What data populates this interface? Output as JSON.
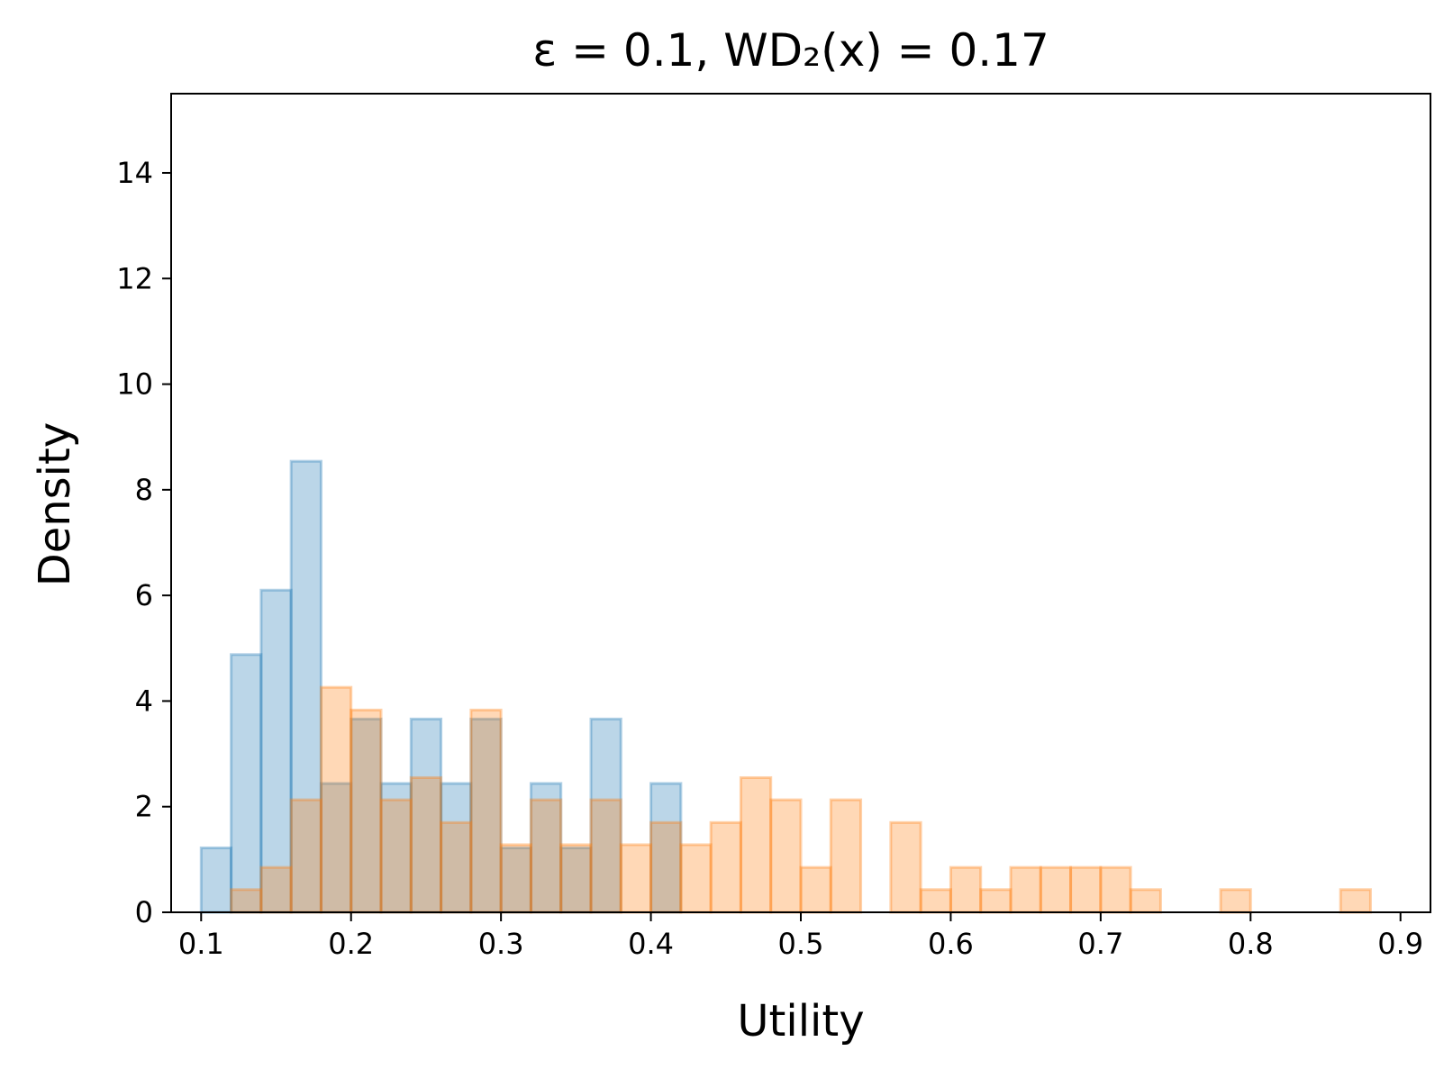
{
  "chart_data": {
    "type": "bar",
    "title": "ε = 0.1, WD₂(x) = 0.17",
    "xlabel": "Utility",
    "ylabel": "Density",
    "xlim": [
      0.08,
      0.92
    ],
    "ylim": [
      0,
      15.5
    ],
    "xticks": [
      "0.1",
      "0.2",
      "0.3",
      "0.4",
      "0.5",
      "0.6",
      "0.7",
      "0.8",
      "0.9"
    ],
    "yticks": [
      "0",
      "2",
      "4",
      "6",
      "8",
      "10",
      "12",
      "14"
    ],
    "grid": false,
    "bin_width": 0.02,
    "series": [
      {
        "color": "#1f77b4",
        "fill_opacity": 0.3,
        "bin_starts": [
          0.1,
          0.12,
          0.14,
          0.16,
          0.18,
          0.2,
          0.22,
          0.24,
          0.26,
          0.28,
          0.3,
          0.32,
          0.34,
          0.36,
          0.38,
          0.4
        ],
        "values": [
          1.22,
          4.88,
          6.1,
          8.54,
          2.44,
          3.66,
          2.44,
          3.66,
          2.44,
          3.66,
          1.22,
          2.44,
          1.22,
          3.66,
          0,
          2.44
        ]
      },
      {
        "color": "#ff7f0e",
        "fill_opacity": 0.3,
        "bin_starts": [
          0.12,
          0.14,
          0.16,
          0.18,
          0.2,
          0.22,
          0.24,
          0.26,
          0.28,
          0.3,
          0.32,
          0.34,
          0.36,
          0.38,
          0.4,
          0.42,
          0.44,
          0.46,
          0.48,
          0.5,
          0.52,
          0.56,
          0.58,
          0.6,
          0.62,
          0.64,
          0.66,
          0.68,
          0.7,
          0.72,
          0.78,
          0.86
        ],
        "values": [
          0.43,
          0.85,
          2.13,
          4.26,
          3.83,
          2.13,
          2.55,
          1.7,
          3.83,
          1.28,
          2.13,
          1.28,
          2.13,
          1.28,
          1.7,
          1.28,
          1.7,
          2.55,
          2.13,
          0.85,
          2.13,
          1.7,
          0.43,
          0.85,
          0.43,
          0.85,
          0.85,
          0.85,
          0.85,
          0.43,
          0.43,
          0.43
        ]
      }
    ]
  }
}
